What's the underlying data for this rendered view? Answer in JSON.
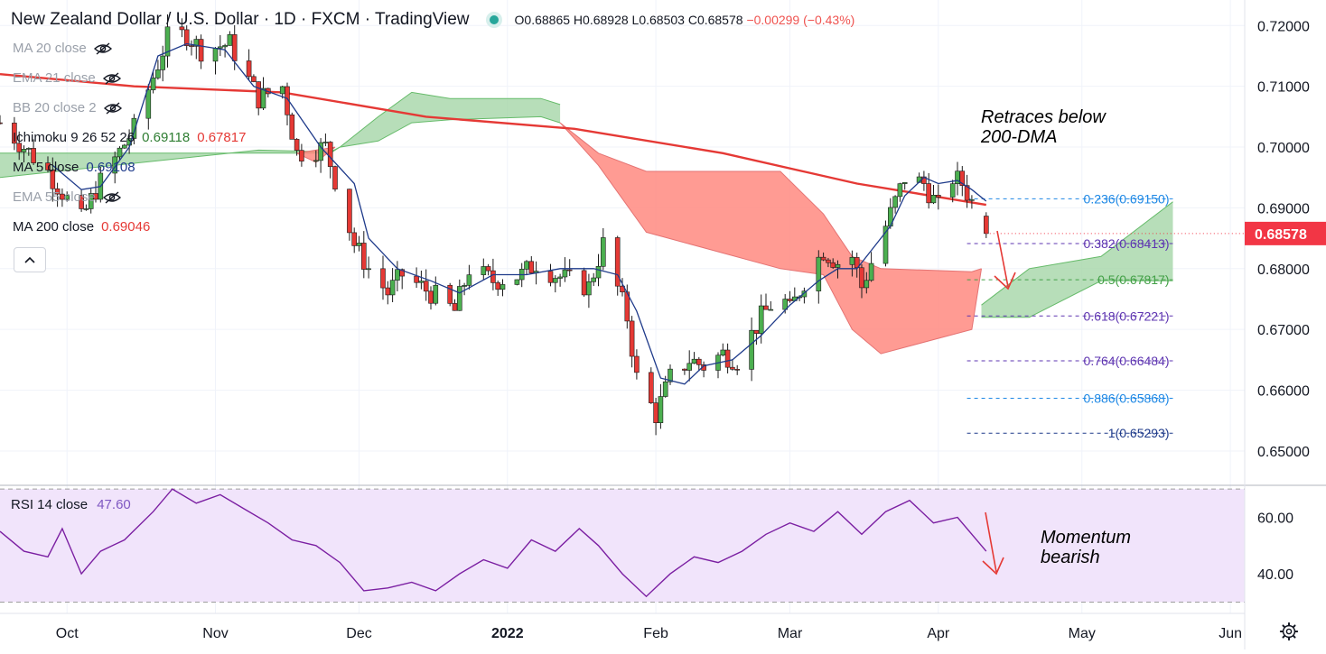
{
  "header": {
    "title": "New Zealand Dollar / U.S. Dollar · 1D · FXCM · TradingView",
    "open": "O0.68865",
    "high": "H0.68928",
    "low": "L0.68503",
    "close": "C0.68578",
    "change": "−0.00299 (−0.43%)"
  },
  "indicators": [
    {
      "name": "MA 20 close",
      "value": "",
      "hidden": true
    },
    {
      "name": "EMA 21 close",
      "value": "",
      "hidden": true
    },
    {
      "name": "BB 20 close 2",
      "value": "",
      "hidden": true
    },
    {
      "name": "Ichimoku 9 26 52 26",
      "value": "0.69118",
      "value2": "0.67817"
    },
    {
      "name": "MA 5 close",
      "value": "0.69108"
    },
    {
      "name": "EMA 55 close",
      "value": "",
      "hidden": true
    },
    {
      "name": "MA 200 close",
      "value": "0.69046"
    }
  ],
  "rsi_legend": {
    "name": "RSI 14 close",
    "value": "47.60"
  },
  "colors": {
    "up": "#26a69a",
    "down": "#ef5350",
    "candle_up": "#4caf50",
    "candle_down": "#e53935",
    "ma5": "#1e3a8a",
    "ma200": "#e53935",
    "cloud_bull": "#a5d6a7",
    "cloud_bear": "#ff8a80",
    "rsi": "#7b1fa2",
    "rsi_band": "#f1e4fb",
    "fib_text": "#5e35b1",
    "last_price_bg": "#f23645"
  },
  "chart_data": [
    {
      "type": "candlestick",
      "title": "New Zealand Dollar / U.S. Dollar · 1D · FXCM · TradingView",
      "ylim": [
        0.6445,
        0.7242
      ],
      "y_ticks": [
        "0.72000",
        "0.71000",
        "0.70000",
        "0.69000",
        "0.68000",
        "0.67000",
        "0.66000",
        "0.65000"
      ],
      "x_ticks": [
        "Oct",
        "Nov",
        "Dec",
        "2022",
        "Feb",
        "Mar",
        "Apr",
        "May",
        "Jun"
      ],
      "x_tick_dates": [
        "2021-10-01",
        "2021-11-01",
        "2021-12-01",
        "2022-01-01",
        "2022-02-01",
        "2022-03-01",
        "2022-04-01",
        "2022-05-01",
        "2022-06-01"
      ],
      "last_price": "0.68578",
      "ohlc_path": [
        [
          "2021-09-17",
          0.704
        ],
        [
          "2021-09-27",
          0.696
        ],
        [
          "2021-10-04",
          0.688
        ],
        [
          "2021-10-07",
          0.693
        ],
        [
          "2021-10-15",
          0.703
        ],
        [
          "2021-10-22",
          0.718
        ],
        [
          "2021-10-26",
          0.7185
        ],
        [
          "2021-10-29",
          0.716
        ],
        [
          "2021-11-04",
          0.717
        ],
        [
          "2021-11-10",
          0.708
        ],
        [
          "2021-11-15",
          0.71
        ],
        [
          "2021-11-18",
          0.699
        ],
        [
          "2021-11-24",
          0.7
        ],
        [
          "2021-11-30",
          0.684
        ],
        [
          "2021-12-03",
          0.68
        ],
        [
          "2021-12-07",
          0.676
        ],
        [
          "2021-12-10",
          0.679
        ],
        [
          "2021-12-16",
          0.676
        ],
        [
          "2021-12-21",
          0.673
        ],
        [
          "2021-12-24",
          0.68
        ],
        [
          "2021-12-29",
          0.678
        ],
        [
          "2022-01-04",
          0.679
        ],
        [
          "2022-01-07",
          0.681
        ],
        [
          "2022-01-11",
          0.679
        ],
        [
          "2022-01-14",
          0.678
        ],
        [
          "2022-01-18",
          0.677
        ],
        [
          "2022-01-21",
          0.684
        ],
        [
          "2022-01-26",
          0.672
        ],
        [
          "2022-01-28",
          0.662
        ],
        [
          "2022-02-01",
          0.656
        ],
        [
          "2022-02-04",
          0.662
        ],
        [
          "2022-02-08",
          0.665
        ],
        [
          "2022-02-11",
          0.664
        ],
        [
          "2022-02-15",
          0.666
        ],
        [
          "2022-02-18",
          0.665
        ],
        [
          "2022-02-23",
          0.672
        ],
        [
          "2022-02-27",
          0.676
        ],
        [
          "2022-03-01",
          0.673
        ],
        [
          "2022-03-04",
          0.678
        ],
        [
          "2022-03-08",
          0.683
        ],
        [
          "2022-03-11",
          0.681
        ],
        [
          "2022-03-14",
          0.682
        ],
        [
          "2022-03-16",
          0.677
        ],
        [
          "2022-03-18",
          0.681
        ],
        [
          "2022-03-22",
          0.689
        ],
        [
          "2022-03-25",
          0.695
        ],
        [
          "2022-03-29",
          0.694
        ],
        [
          "2022-04-01",
          0.69
        ],
        [
          "2022-04-04",
          0.695
        ],
        [
          "2022-04-06",
          0.694
        ],
        [
          "2022-04-08",
          0.691
        ],
        [
          "2022-04-11",
          0.6858
        ]
      ],
      "ma5_path": [
        [
          "2021-09-28",
          0.697
        ],
        [
          "2021-10-04",
          0.693
        ],
        [
          "2021-10-08",
          0.6935
        ],
        [
          "2021-10-14",
          0.7
        ],
        [
          "2021-10-20",
          0.715
        ],
        [
          "2021-10-26",
          0.717
        ],
        [
          "2021-11-03",
          0.716
        ],
        [
          "2021-11-09",
          0.71
        ],
        [
          "2021-11-16",
          0.708
        ],
        [
          "2021-11-23",
          0.7
        ],
        [
          "2021-11-30",
          0.694
        ],
        [
          "2021-12-03",
          0.685
        ],
        [
          "2021-12-09",
          0.68
        ],
        [
          "2021-12-16",
          0.678
        ],
        [
          "2021-12-22",
          0.676
        ],
        [
          "2021-12-29",
          0.679
        ],
        [
          "2022-01-05",
          0.679
        ],
        [
          "2022-01-12",
          0.68
        ],
        [
          "2022-01-19",
          0.68
        ],
        [
          "2022-01-24",
          0.679
        ],
        [
          "2022-01-28",
          0.673
        ],
        [
          "2022-02-02",
          0.662
        ],
        [
          "2022-02-07",
          0.661
        ],
        [
          "2022-02-11",
          0.664
        ],
        [
          "2022-02-17",
          0.665
        ],
        [
          "2022-02-23",
          0.669
        ],
        [
          "2022-03-01",
          0.674
        ],
        [
          "2022-03-07",
          0.678
        ],
        [
          "2022-03-11",
          0.68
        ],
        [
          "2022-03-15",
          0.68
        ],
        [
          "2022-03-18",
          0.683
        ],
        [
          "2022-03-22",
          0.687
        ],
        [
          "2022-03-25",
          0.692
        ],
        [
          "2022-03-29",
          0.695
        ],
        [
          "2022-04-01",
          0.694
        ],
        [
          "2022-04-05",
          0.6945
        ],
        [
          "2022-04-08",
          0.693
        ],
        [
          "2022-04-11",
          0.6911
        ]
      ],
      "ma200_path": [
        [
          "2021-09-17",
          0.712
        ],
        [
          "2021-10-15",
          0.71
        ],
        [
          "2021-11-15",
          0.709
        ],
        [
          "2021-12-15",
          0.705
        ],
        [
          "2022-01-15",
          0.703
        ],
        [
          "2022-02-15",
          0.699
        ],
        [
          "2022-03-15",
          0.694
        ],
        [
          "2022-04-11",
          0.6905
        ]
      ],
      "ichimoku_cloud": [
        {
          "kind": "bullish",
          "upper": [
            [
              "2021-09-17",
              0.695
            ],
            [
              "2021-11-10",
              0.6995
            ],
            [
              "2021-11-25",
              0.6992
            ],
            [
              "2021-11-27",
              0.7
            ]
          ],
          "lower": [
            [
              "2021-09-17",
              0.699
            ],
            [
              "2021-11-10",
              0.699
            ],
            [
              "2021-11-25",
              0.699
            ],
            [
              "2021-11-27",
              0.7
            ]
          ]
        },
        {
          "kind": "bearish",
          "upper": [
            [
              "2021-11-18",
              0.699
            ],
            [
              "2021-11-22",
              0.6975
            ],
            [
              "2021-11-26",
              0.7
            ]
          ],
          "lower": [
            [
              "2021-11-18",
              0.699
            ],
            [
              "2021-11-22",
              0.6995
            ],
            [
              "2021-11-26",
              0.7
            ]
          ]
        },
        {
          "kind": "bullish",
          "upper": [
            [
              "2021-11-27",
              0.7
            ],
            [
              "2021-12-05",
              0.705
            ],
            [
              "2021-12-12",
              0.709
            ],
            [
              "2021-12-20",
              0.708
            ],
            [
              "2022-01-08",
              0.708
            ],
            [
              "2022-01-12",
              0.707
            ]
          ],
          "lower": [
            [
              "2021-11-27",
              0.7
            ],
            [
              "2021-12-05",
              0.701
            ],
            [
              "2021-12-12",
              0.704
            ],
            [
              "2021-12-20",
              0.7045
            ],
            [
              "2022-01-08",
              0.705
            ],
            [
              "2022-01-12",
              0.704
            ]
          ]
        },
        {
          "kind": "bearish",
          "upper": [
            [
              "2022-01-12",
              0.704
            ],
            [
              "2022-01-20",
              0.699
            ],
            [
              "2022-01-30",
              0.696
            ],
            [
              "2022-02-27",
              0.696
            ],
            [
              "2022-03-08",
              0.689
            ],
            [
              "2022-03-14",
              0.682
            ],
            [
              "2022-03-20",
              0.68
            ],
            [
              "2022-04-08",
              0.6795
            ],
            [
              "2022-04-10",
              0.68
            ]
          ],
          "lower": [
            [
              "2022-01-12",
              0.704
            ],
            [
              "2022-01-20",
              0.697
            ],
            [
              "2022-01-30",
              0.686
            ],
            [
              "2022-02-27",
              0.68
            ],
            [
              "2022-03-08",
              0.679
            ],
            [
              "2022-03-14",
              0.67
            ],
            [
              "2022-03-20",
              0.666
            ],
            [
              "2022-04-08",
              0.67
            ],
            [
              "2022-04-10",
              0.68
            ]
          ]
        },
        {
          "kind": "bullish",
          "upper": [
            [
              "2022-04-10",
              0.674
            ],
            [
              "2022-04-20",
              0.68
            ],
            [
              "2022-05-05",
              0.682
            ],
            [
              "2022-05-20",
              0.691
            ]
          ],
          "lower": [
            [
              "2022-04-10",
              0.672
            ],
            [
              "2022-04-20",
              0.672
            ],
            [
              "2022-05-05",
              0.678
            ],
            [
              "2022-05-20",
              0.678
            ]
          ]
        }
      ],
      "fibonacci": [
        {
          "label": "0.236(0.69150)",
          "value": 0.6915,
          "color": "#1e88e5"
        },
        {
          "label": "0.382(0.68413)",
          "value": 0.68413,
          "color": "#5e35b1"
        },
        {
          "label": "0.5(0.67817)",
          "value": 0.67817,
          "color": "#43a047"
        },
        {
          "label": "0.618(0.67221)",
          "value": 0.67221,
          "color": "#5e35b1"
        },
        {
          "label": "0.764(0.66484)",
          "value": 0.66484,
          "color": "#5e35b1"
        },
        {
          "label": "0.886(0.65868)",
          "value": 0.65868,
          "color": "#1e88e5"
        },
        {
          "label": "1(0.65293)",
          "value": 0.65293,
          "color": "#1e3a8a"
        }
      ],
      "annotations": [
        "Retraces below 200-DMA"
      ]
    },
    {
      "type": "line",
      "title": "RSI 14 close",
      "ylim": [
        26,
        71
      ],
      "y_ticks": [
        "60.00",
        "40.00"
      ],
      "band": [
        30,
        70
      ],
      "value": "47.60",
      "series": [
        {
          "values": [
            [
              "2021-09-17",
              55
            ],
            [
              "2021-09-22",
              48
            ],
            [
              "2021-09-27",
              46
            ],
            [
              "2021-09-30",
              56
            ],
            [
              "2021-10-04",
              40
            ],
            [
              "2021-10-08",
              48
            ],
            [
              "2021-10-13",
              52
            ],
            [
              "2021-10-19",
              62
            ],
            [
              "2021-10-23",
              70
            ],
            [
              "2021-10-28",
              65
            ],
            [
              "2021-11-02",
              68
            ],
            [
              "2021-11-07",
              63
            ],
            [
              "2021-11-12",
              58
            ],
            [
              "2021-11-17",
              52
            ],
            [
              "2021-11-22",
              50
            ],
            [
              "2021-11-27",
              44
            ],
            [
              "2021-12-02",
              34
            ],
            [
              "2021-12-07",
              35
            ],
            [
              "2021-12-12",
              37
            ],
            [
              "2021-12-17",
              34
            ],
            [
              "2021-12-22",
              40
            ],
            [
              "2021-12-27",
              45
            ],
            [
              "2022-01-01",
              42
            ],
            [
              "2022-01-06",
              52
            ],
            [
              "2022-01-11",
              48
            ],
            [
              "2022-01-16",
              56
            ],
            [
              "2022-01-20",
              50
            ],
            [
              "2022-01-25",
              40
            ],
            [
              "2022-01-30",
              32
            ],
            [
              "2022-02-04",
              40
            ],
            [
              "2022-02-09",
              46
            ],
            [
              "2022-02-14",
              44
            ],
            [
              "2022-02-19",
              48
            ],
            [
              "2022-02-24",
              54
            ],
            [
              "2022-03-01",
              58
            ],
            [
              "2022-03-06",
              55
            ],
            [
              "2022-03-11",
              62
            ],
            [
              "2022-03-16",
              54
            ],
            [
              "2022-03-21",
              62
            ],
            [
              "2022-03-26",
              66
            ],
            [
              "2022-03-31",
              58
            ],
            [
              "2022-04-05",
              60
            ],
            [
              "2022-04-11",
              48
            ]
          ]
        }
      ],
      "annotations": [
        "Momentum",
        "bearish"
      ]
    }
  ]
}
